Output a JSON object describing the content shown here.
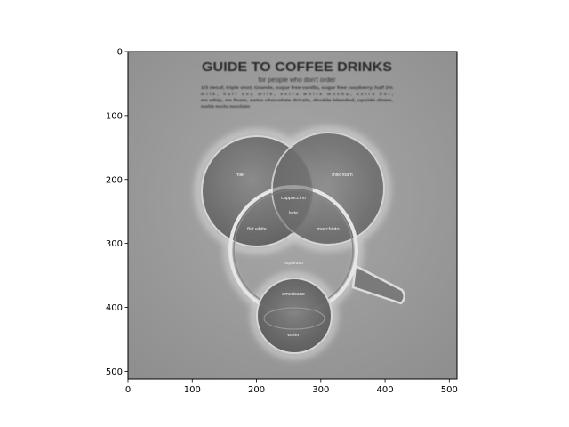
{
  "chart_data": {
    "type": "image",
    "xlim": [
      0,
      512
    ],
    "ylim": [
      512,
      0
    ],
    "x_ticks": [
      "0",
      "100",
      "200",
      "300",
      "400",
      "500"
    ],
    "y_ticks": [
      "0",
      "100",
      "200",
      "300",
      "400",
      "500"
    ],
    "grid": false,
    "colormap": "gray",
    "embedded_image": {
      "title": "GUIDE TO COFFEE DRINKS",
      "subtitle": "for people who don't order",
      "body_lines": [
        "1/3 decaf, triple shot, Grande, sugar free vanilla, sugar free raspberry, half 2%",
        "milk, half soy milk, extra white mocha, extra hot,",
        "no whip, no foam, extra chocolate drizzle, double blended, upside down,",
        "marble mocha macchiato"
      ],
      "circle_labels": {
        "milk": "milk",
        "milk_foam": "milk foam",
        "espresso": "espresso",
        "water": "water"
      },
      "overlap_labels": {
        "cappuccino": "cappuccino",
        "latte": "latte",
        "flat_white": "flat white",
        "macchiato": "macchiato",
        "americano": "americano"
      }
    }
  }
}
